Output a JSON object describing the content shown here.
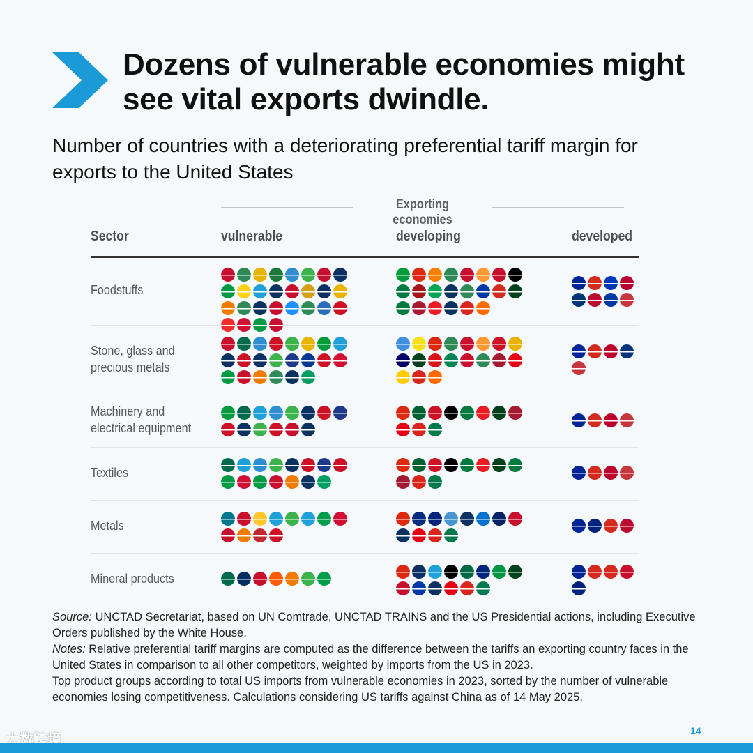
{
  "header": {
    "title": "Dozens of vulnerable economies might see vital exports dwindle.",
    "subtitle": "Number of countries with a deteriorating preferential tariff margin for exports to the United States"
  },
  "table": {
    "group_label": "Exporting economies",
    "columns": [
      "Sector",
      "vulnerable",
      "developing",
      "developed"
    ],
    "rows": [
      {
        "sector": "Foodstuffs",
        "vulnerable_flags": [
          "#c8102e",
          "#2e8b57",
          "#e8b400",
          "#1d7a3c",
          "#2f8fd1",
          "#3cb44b",
          "#c8102e",
          "#0a3161",
          "#009a44",
          "#fcd116",
          "#1fa0d9",
          "#0a3161",
          "#c8102e",
          "#d4a017",
          "#0a3161",
          "#e8b400",
          "#ef7c00",
          "#2e8b57",
          "#0a3161",
          "#c8102e",
          "#1e90ff",
          "#2e8b57",
          "#2a6ebb",
          "#ce1126",
          "#ef2b2d",
          "#d21034",
          "#009a44",
          "#c8102e"
        ],
        "developing_flags": [
          "#009b3a",
          "#de2910",
          "#f77f00",
          "#2e8b57",
          "#c8102e",
          "#ff9933",
          "#c8102e",
          "#000000",
          "#007a3d",
          "#aa151b",
          "#00a651",
          "#0a3161",
          "#2e8b57",
          "#0038a8",
          "#d52b1e",
          "#01411c",
          "#007a3d",
          "#a51931",
          "#ed1c24",
          "#0a3161",
          "#da251d",
          "#ff6a00"
        ],
        "developed_flags": [
          "#002395",
          "#d52b1e",
          "#0038b8",
          "#bc002d",
          "#003478",
          "#ba0c2f",
          "#0039a6",
          "#c6363c"
        ]
      },
      {
        "sector": "Stone, glass and\nprecious metals",
        "vulnerable_flags": [
          "#c8102e",
          "#006a4e",
          "#2f8fd1",
          "#ce1126",
          "#3cb44b",
          "#e8b400",
          "#009b3a",
          "#1fa0d9",
          "#0a3161",
          "#ce1126",
          "#0a3161",
          "#3cb44b",
          "#1e3a8a",
          "#003893",
          "#ce1126",
          "#d21034",
          "#009a44",
          "#c8102e",
          "#ef7c00",
          "#2e8b57",
          "#0a3161",
          "#009e60"
        ],
        "developing_flags": [
          "#418fde",
          "#f7e017",
          "#de2910",
          "#2e8b57",
          "#c8102e",
          "#ff9933",
          "#ce1126",
          "#e8b400",
          "#010066",
          "#01411c",
          "#da121a",
          "#008751",
          "#c8102e",
          "#2e8b57",
          "#a51931",
          "#e70013",
          "#ffcc00",
          "#da251d",
          "#ff6a00"
        ],
        "developed_flags": [
          "#002395",
          "#d52b1e",
          "#bc002d",
          "#003478",
          "#c6363c"
        ]
      },
      {
        "sector": "Machinery and\nelectrical equipment",
        "vulnerable_flags": [
          "#009b3a",
          "#006a4e",
          "#1fa0d9",
          "#2f8fd1",
          "#3cb44b",
          "#0a3161",
          "#ce1126",
          "#1e3a8a",
          "#ce1126",
          "#0a3161",
          "#3cb44b",
          "#ce1126",
          "#c8102e",
          "#0a3161"
        ],
        "developing_flags": [
          "#de2910",
          "#006233",
          "#ce1126",
          "#000000",
          "#007a3d",
          "#ed1c24",
          "#01411c",
          "#a51931",
          "#e70013",
          "#da251d",
          "#007a4d"
        ],
        "developed_flags": [
          "#002395",
          "#d52b1e",
          "#bc002d",
          "#c6363c"
        ]
      },
      {
        "sector": "Textiles",
        "vulnerable_flags": [
          "#006a4e",
          "#1fa0d9",
          "#2f8fd1",
          "#3cb44b",
          "#0a3161",
          "#ce1126",
          "#1e3a8a",
          "#ce1126",
          "#009a44",
          "#d21034",
          "#009a44",
          "#c8102e",
          "#ef7c00",
          "#0a3161",
          "#009e60"
        ],
        "developing_flags": [
          "#de2910",
          "#006233",
          "#ce1126",
          "#000000",
          "#007a3d",
          "#ed1c24",
          "#01411c",
          "#007a3d",
          "#a51931",
          "#da251d",
          "#007a4d"
        ],
        "developed_flags": [
          "#002395",
          "#d52b1e",
          "#bc002d",
          "#c6363c"
        ]
      },
      {
        "sector": "Metals",
        "vulnerable_flags": [
          "#00778b",
          "#c8102e",
          "#ffc72c",
          "#1fa0d9",
          "#3cb44b",
          "#1fa0d9",
          "#009e49",
          "#d21034",
          "#c8102e",
          "#ef7c00",
          "#c4272f",
          "#ce1126"
        ],
        "developing_flags": [
          "#de2910",
          "#002b7f",
          "#00247d",
          "#4997d0",
          "#0a3161",
          "#0073cf",
          "#012169",
          "#c8102e",
          "#0a3161",
          "#e70013",
          "#da251d",
          "#007a4d"
        ],
        "developed_flags": [
          "#002395",
          "#00247d",
          "#d52b1e",
          "#ba0c2f"
        ]
      },
      {
        "sector": "Mineral products",
        "vulnerable_flags": [
          "#006a4e",
          "#002d62",
          "#c8102e",
          "#ff5b00",
          "#ef7c00",
          "#3cb44b",
          "#009e49"
        ],
        "developing_flags": [
          "#de2910",
          "#0a3161",
          "#1fa0d9",
          "#000000",
          "#006847",
          "#00247d",
          "#009543",
          "#01411c",
          "#c8102e",
          "#0038a8",
          "#0a3161",
          "#e70013",
          "#da251d",
          "#007a4d"
        ],
        "developed_flags": [
          "#002395",
          "#d52b1e",
          "#d52b1e",
          "#c8102e",
          "#00247d"
        ]
      }
    ]
  },
  "notes": {
    "source_label": "Source:",
    "source_text": " UNCTAD Secretariat, based on UN Comtrade, UNCTAD TRAINS and the US Presidential actions, including Executive Orders published by the White House.",
    "notes_label": "Notes:",
    "notes_text": " Relative preferential tariff margins are computed as the difference between the tariffs an exporting country faces in the United States in comparison to all other competitors, weighted by imports from the US in 2023.",
    "extra_text": "Top product groups according to total US imports from vulnerable economies in 2023, sorted by the number of vulnerable economies losing competitiveness. Calculations considering US tariffs against China as of 14 May 2025."
  },
  "footer": {
    "page_number": "14",
    "watermark": "大数跨境"
  },
  "colors": {
    "accent": "#1a9ad6",
    "background": "#f5f9fc"
  }
}
